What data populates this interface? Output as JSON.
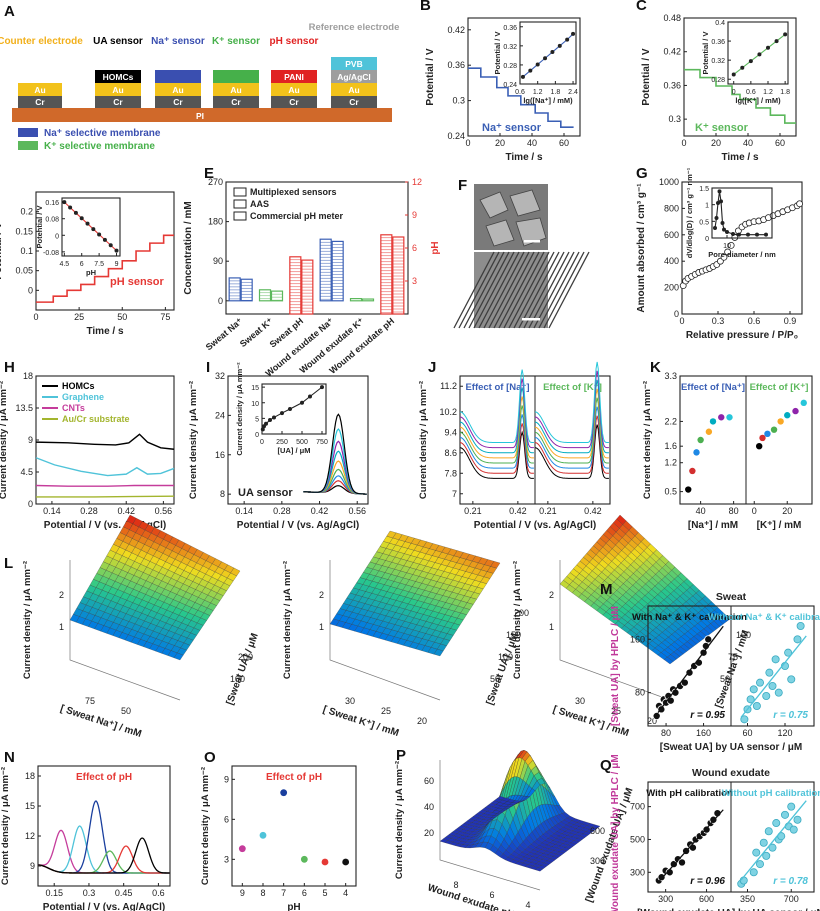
{
  "colors": {
    "na": "#3a5fb5",
    "k": "#5cb85c",
    "ph": "#e53935",
    "teal": "#4fc3d9",
    "magenta": "#c53c9b",
    "hplc_axis": "#c0399a",
    "rainbow": [
      "#000000",
      "#d32f2f",
      "#1e88e5",
      "#4caf50",
      "#f9a825",
      "#00acc1",
      "#8e24aa",
      "#26c6da"
    ]
  },
  "panelA": {
    "label": "A",
    "top_labels": {
      "counter": "Counter electrode",
      "ua": "UA sensor",
      "na": "Na⁺ sensor",
      "k": "K⁺ sensor",
      "ph": "pH sensor",
      "ref": "Reference electrode"
    },
    "layers": {
      "hom": "HOMCs",
      "pani": "PANI",
      "pvb": "PVB",
      "agcl": "Ag/AgCl",
      "au": "Au",
      "cr": "Cr",
      "pi": "PI"
    },
    "legend": [
      "Na⁺ selective membrane",
      "K⁺ selective membrane"
    ]
  },
  "chart_data": [
    {
      "panel": "B",
      "type": "line",
      "xlabel": "Time / s",
      "ylabel": "Potential / V",
      "xlim": [
        0,
        70
      ],
      "ylim": [
        0.24,
        0.44
      ],
      "xticks": [
        0,
        20,
        40,
        60
      ],
      "yticks": [
        0.24,
        0.3,
        0.36,
        0.42
      ],
      "annotation": "Na⁺ sensor",
      "steps": {
        "x": [
          0,
          8,
          18,
          25,
          33,
          42,
          50,
          58,
          66
        ],
        "y": [
          0.355,
          0.34,
          0.322,
          0.308,
          0.293,
          0.279,
          0.265,
          0.255,
          0.255
        ]
      },
      "inset": {
        "xlabel": "lg([Na⁺] / mM)",
        "ylabel": "Potential / V",
        "xlim": [
          0.6,
          2.5
        ],
        "ylim": [
          0.24,
          0.37
        ],
        "xticks": [
          0.6,
          1.2,
          1.8,
          2.4
        ],
        "yticks": [
          0.24,
          0.28,
          0.32,
          0.36
        ],
        "x": [
          0.7,
          0.95,
          1.2,
          1.45,
          1.7,
          1.95,
          2.2,
          2.4
        ],
        "y": [
          0.255,
          0.268,
          0.281,
          0.294,
          0.307,
          0.32,
          0.333,
          0.345
        ]
      }
    },
    {
      "panel": "C",
      "type": "line",
      "xlabel": "Time / s",
      "ylabel": "Potential / V",
      "xlim": [
        0,
        70
      ],
      "ylim": [
        0.27,
        0.48
      ],
      "xticks": [
        0,
        20,
        40,
        60
      ],
      "yticks": [
        0.3,
        0.36,
        0.42,
        0.48
      ],
      "annotation": "K⁺ sensor",
      "steps": {
        "x": [
          0,
          10,
          20,
          30,
          35,
          45,
          54,
          63,
          70
        ],
        "y": [
          0.388,
          0.374,
          0.359,
          0.344,
          0.335,
          0.32,
          0.307,
          0.293,
          0.293
        ]
      },
      "inset": {
        "xlabel": "lg([K⁺] / mM)",
        "ylabel": "Potential / V",
        "xlim": [
          -0.2,
          1.9
        ],
        "ylim": [
          0.27,
          0.4
        ],
        "xticks": [
          0.0,
          0.6,
          1.2,
          1.8
        ],
        "yticks": [
          0.28,
          0.32,
          0.36,
          0.4
        ],
        "x": [
          0.0,
          0.3,
          0.6,
          0.9,
          1.2,
          1.5,
          1.8
        ],
        "y": [
          0.29,
          0.304,
          0.318,
          0.332,
          0.346,
          0.36,
          0.374
        ]
      }
    },
    {
      "panel": "D",
      "type": "line",
      "xlabel": "Time / s",
      "ylabel": "Potential / V",
      "xlim": [
        0,
        80
      ],
      "ylim": [
        -0.05,
        0.25
      ],
      "xticks": [
        0,
        25,
        50,
        75
      ],
      "yticks": [
        0.0,
        0.05,
        0.1,
        0.15,
        0.2
      ],
      "annotation": "pH sensor",
      "steps": {
        "x": [
          0,
          10,
          18,
          26,
          34,
          42,
          50,
          58,
          66,
          74,
          80
        ],
        "y": [
          -0.03,
          -0.015,
          0.0,
          0.015,
          0.035,
          0.055,
          0.075,
          0.1,
          0.12,
          0.14,
          0.14
        ]
      },
      "inset": {
        "xlabel": "pH",
        "ylabel": "Potential / V",
        "xlim": [
          4.3,
          9.3
        ],
        "ylim": [
          -0.1,
          0.18
        ],
        "xticks": [
          4.5,
          6.0,
          7.5,
          9.0
        ],
        "yticks": [
          -0.08,
          0.0,
          0.08,
          0.16
        ],
        "x": [
          4.5,
          5.0,
          5.5,
          6.0,
          6.5,
          7.0,
          7.5,
          8.0,
          8.5,
          9.0
        ],
        "y": [
          0.16,
          0.134,
          0.108,
          0.082,
          0.056,
          0.03,
          0.004,
          -0.022,
          -0.048,
          -0.074
        ]
      }
    },
    {
      "panel": "E",
      "type": "bar",
      "ylabel": "Concentration / mM",
      "ylabel2": "pH",
      "ylim": [
        -30,
        270
      ],
      "yticks": [
        0,
        90,
        180,
        270
      ],
      "y2lim": [
        0,
        12
      ],
      "y2ticks": [
        3,
        6,
        9,
        12
      ],
      "categories": [
        "Sweat Na⁺",
        "Sweat K⁺",
        "Sweat pH",
        "Wound exudate Na⁺",
        "Wound exudate K⁺",
        "Wound exudate pH"
      ],
      "legend": [
        "Multiplexed sensors",
        "AAS",
        "Commercial pH meter"
      ],
      "series": [
        {
          "name": "Multiplexed sensors",
          "values": [
            52,
            25,
            5.2,
            140,
            5,
            7.2
          ]
        },
        {
          "name": "Commercial",
          "values": [
            49,
            22,
            4.9,
            135,
            4,
            7.0
          ]
        }
      ]
    },
    {
      "panel": "G",
      "type": "scatter",
      "xlabel": "Relative pressure / P/P₀",
      "ylabel": "Amount absorbed / cm³ g⁻¹",
      "xlim": [
        0,
        1.0
      ],
      "ylim": [
        0,
        1000
      ],
      "xticks": [
        0.0,
        0.3,
        0.6,
        0.9
      ],
      "yticks": [
        0,
        200,
        400,
        600,
        800,
        1000
      ],
      "x": [
        0.01,
        0.03,
        0.05,
        0.08,
        0.11,
        0.14,
        0.17,
        0.2,
        0.23,
        0.26,
        0.29,
        0.32,
        0.35,
        0.38,
        0.41,
        0.44,
        0.47,
        0.5,
        0.53,
        0.56,
        0.6,
        0.64,
        0.68,
        0.72,
        0.76,
        0.8,
        0.84,
        0.88,
        0.92,
        0.96,
        0.98
      ],
      "y": [
        215,
        250,
        270,
        285,
        300,
        315,
        325,
        335,
        345,
        360,
        375,
        400,
        430,
        470,
        520,
        580,
        630,
        660,
        680,
        690,
        700,
        705,
        715,
        730,
        745,
        760,
        775,
        790,
        805,
        820,
        835
      ],
      "inset": {
        "xlabel": "Pore diameter / nm",
        "ylabel": "dV/dlog(D) / cm³ g⁻¹ nm⁻¹",
        "xlim": [
          0,
          40
        ],
        "ylim": [
          0,
          1.5
        ],
        "xticks": [
          10
        ],
        "yticks": [
          0.0,
          0.5,
          1.0,
          1.5
        ],
        "x": [
          2,
          3,
          4,
          5,
          6,
          7,
          8,
          10,
          14,
          18,
          24,
          30,
          36
        ],
        "y": [
          0.3,
          0.6,
          1.05,
          1.4,
          1.1,
          0.45,
          0.25,
          0.18,
          0.12,
          0.1,
          0.1,
          0.1,
          0.1
        ]
      }
    },
    {
      "panel": "H",
      "type": "line",
      "xlabel": "Potential / V (vs. Ag/AgCl)",
      "ylabel": "Current density / μA mm⁻²",
      "xlim": [
        0.08,
        0.6
      ],
      "ylim": [
        0,
        18
      ],
      "xticks": [
        0.14,
        0.28,
        0.42,
        0.56
      ],
      "yticks": [
        0,
        4.5,
        9,
        13.5,
        18
      ],
      "legend": [
        "HOMCs",
        "Graphene",
        "CNTs",
        "Au/Cr substrate"
      ],
      "series": [
        {
          "name": "HOMCs",
          "x": [
            0.08,
            0.2,
            0.3,
            0.38,
            0.43,
            0.47,
            0.5,
            0.55,
            0.6
          ],
          "y": [
            8.7,
            8.6,
            8.4,
            8.3,
            8.6,
            9.8,
            8.7,
            7.9,
            7.7
          ]
        },
        {
          "name": "Graphene",
          "x": [
            0.08,
            0.15,
            0.25,
            0.35,
            0.42,
            0.46,
            0.5,
            0.55,
            0.6
          ],
          "y": [
            6.5,
            5.5,
            4.6,
            4.0,
            4.2,
            5.1,
            4.2,
            4.3,
            5.0
          ]
        },
        {
          "name": "CNTs",
          "x": [
            0.08,
            0.2,
            0.35,
            0.45,
            0.6
          ],
          "y": [
            2.6,
            2.5,
            2.5,
            2.6,
            2.6
          ]
        },
        {
          "name": "Au/Cr substrate",
          "x": [
            0.08,
            0.3,
            0.6
          ],
          "y": [
            1.0,
            1.0,
            1.1
          ]
        }
      ]
    },
    {
      "panel": "I",
      "type": "line",
      "xlabel": "Potential / V (vs. Ag/AgCl)",
      "ylabel": "Current density / μA mm⁻²",
      "xlim": [
        0.08,
        0.6
      ],
      "ylim": [
        6,
        32
      ],
      "xticks": [
        0.14,
        0.28,
        0.42,
        0.56
      ],
      "yticks": [
        8,
        16,
        24,
        32
      ],
      "annotation": "UA sensor",
      "peak_heights": [
        9.5,
        10.5,
        11.5,
        12.8,
        14.5,
        16.5,
        18.5,
        21,
        24
      ],
      "inset": {
        "xlabel": "[UA] / μM",
        "ylabel": "Current density / μA mm⁻²",
        "xlim": [
          0,
          800
        ],
        "ylim": [
          0,
          16
        ],
        "xticks": [
          0,
          250,
          500,
          750
        ],
        "yticks": [
          0,
          5,
          10,
          15
        ],
        "x": [
          10,
          25,
          50,
          100,
          150,
          250,
          350,
          500,
          600,
          750
        ],
        "y": [
          1.5,
          2.5,
          3.3,
          4.5,
          5.3,
          6.7,
          8.0,
          10.0,
          12.0,
          15.0
        ]
      }
    },
    {
      "panel": "J",
      "type": "line",
      "xlabel": "Potential / V (vs. Ag/AgCl)",
      "ylabel": "Current density / μA mm⁻²",
      "xlim": [
        0.15,
        0.5
      ],
      "ylim": [
        6.6,
        11.6
      ],
      "xticks": [
        0.21,
        0.42
      ],
      "yticks": [
        7.0,
        7.8,
        8.6,
        9.4,
        10.2,
        11.2
      ],
      "titles": [
        "Effect of [Na⁺]",
        "Effect of [K⁺]"
      ]
    },
    {
      "panel": "K",
      "type": "scatter",
      "ylabel": "Current density / μA mm⁻²",
      "ylim": [
        0.2,
        3.3
      ],
      "yticks": [
        0.5,
        1.2,
        1.6,
        2.2,
        3.3
      ],
      "titles": [
        "Effect of [Na⁺]",
        "Effect of [K⁺]"
      ],
      "left": {
        "xlabel": "[Na⁺] / mM",
        "xlim": [
          15,
          95
        ],
        "xticks": [
          40,
          80
        ],
        "x": [
          25,
          30,
          35,
          40,
          50,
          55,
          65,
          75
        ],
        "y": [
          0.55,
          1.0,
          1.45,
          1.75,
          1.95,
          2.2,
          2.3,
          2.3
        ]
      },
      "right": {
        "xlabel": "[K⁺] / mM",
        "xlim": [
          -5,
          35
        ],
        "xticks": [
          0,
          20
        ],
        "x": [
          3,
          5,
          8,
          12,
          16,
          20,
          25,
          30
        ],
        "y": [
          1.6,
          1.8,
          1.9,
          2.0,
          2.2,
          2.35,
          2.45,
          2.65
        ]
      }
    },
    {
      "panel": "L",
      "type": "surface",
      "plots": [
        {
          "xlabel": "[ Sweat Na⁺] / mM",
          "ylabel": "[Sweat UA] / μM",
          "zlabel": "Current density / μA mm⁻²",
          "xticks": [
            75,
            50
          ],
          "yticks": [
            100,
            200
          ],
          "zticks": [
            1,
            2
          ]
        },
        {
          "xlabel": "[ Sweat K⁺] / mM",
          "ylabel": "[Sweat UA] / μM",
          "zlabel": "Current density / μA mm⁻²",
          "xticks": [
            30,
            25,
            20
          ],
          "yticks": [
            50,
            100,
            150,
            200
          ],
          "zticks": [
            1,
            2
          ]
        },
        {
          "xlabel": "[ Sweat K⁺] / mM",
          "ylabel": "[Sweat Na⁺] / mM",
          "zlabel": "Current density / μA mm⁻²",
          "xticks": [
            30,
            25,
            20
          ],
          "yticks": [
            50,
            75,
            100
          ],
          "zticks": [
            1,
            2
          ]
        }
      ]
    },
    {
      "panel": "M",
      "type": "scatter",
      "title": "Sweat",
      "xlabel": "[Sweat UA] by UA sensor / μM",
      "ylabel": "[Sweat UA] by HPLC / μM",
      "ylim": [
        30,
        210
      ],
      "yticks": [
        80,
        160
      ],
      "left": {
        "caption": "With Na⁺ & K⁺ calibration",
        "r": "r = 0.95",
        "xlim": [
          50,
          210
        ],
        "xticks": [
          80,
          160
        ],
        "x": [
          60,
          65,
          70,
          75,
          80,
          85,
          90,
          95,
          100,
          110,
          120,
          130,
          140,
          150,
          160,
          165,
          170
        ],
        "y": [
          45,
          60,
          55,
          70,
          65,
          75,
          68,
          85,
          80,
          90,
          95,
          110,
          120,
          125,
          140,
          150,
          160
        ]
      },
      "right": {
        "caption": "Without Na⁺ & K⁺ calibration",
        "r": "r = 0.75",
        "xlim": [
          40,
          160
        ],
        "xticks": [
          60,
          120
        ],
        "x": [
          55,
          60,
          65,
          70,
          75,
          80,
          90,
          95,
          100,
          105,
          110,
          120,
          125,
          130,
          140,
          145
        ],
        "y": [
          40,
          55,
          70,
          85,
          60,
          95,
          75,
          110,
          90,
          130,
          80,
          120,
          140,
          100,
          160,
          180
        ]
      }
    },
    {
      "panel": "N",
      "type": "line",
      "title": "Effect of pH",
      "xlabel": "Potential / V (vs. Ag/AgCl)",
      "ylabel": "Current density / μA mm⁻²",
      "xlim": [
        0.08,
        0.65
      ],
      "ylim": [
        7,
        19
      ],
      "xticks": [
        0.15,
        0.3,
        0.45,
        0.6
      ],
      "yticks": [
        9,
        12,
        15,
        18
      ],
      "peaks": [
        {
          "x": 0.18,
          "y": 12.5
        },
        {
          "x": 0.26,
          "y": 13.0
        },
        {
          "x": 0.33,
          "y": 15.5
        },
        {
          "x": 0.39,
          "y": 10.5
        },
        {
          "x": 0.46,
          "y": 11.0
        },
        {
          "x": 0.53,
          "y": 11.8
        }
      ]
    },
    {
      "panel": "O",
      "type": "scatter",
      "title": "Effect of pH",
      "xlabel": "pH",
      "ylabel": "Current density / μA mm⁻²",
      "xlim": [
        9.5,
        3.5
      ],
      "ylim": [
        1,
        10
      ],
      "xticks": [
        9,
        8,
        7,
        6,
        5,
        4
      ],
      "yticks": [
        3,
        6,
        9
      ],
      "x": [
        9,
        8,
        7,
        6,
        5,
        4
      ],
      "y": [
        3.8,
        4.8,
        8.0,
        3.0,
        2.8,
        2.8
      ]
    },
    {
      "panel": "P",
      "type": "surface",
      "xlabel": "Wound exudate pH",
      "ylabel": "[Wound exudate UA] / μM",
      "zlabel": "Current density / μA mm⁻²",
      "xticks": [
        8,
        6,
        4
      ],
      "yticks": [
        300,
        600
      ],
      "zticks": [
        20,
        40,
        60
      ]
    },
    {
      "panel": "Q",
      "type": "scatter",
      "title": "Wound exudate",
      "xlabel": "[Wound exudate UA] by UA sensor / μM",
      "ylabel": "[Wound exudate UA] by HPLC / μM",
      "ylim": [
        180,
        850
      ],
      "yticks": [
        300,
        500,
        700
      ],
      "left": {
        "caption": "With pH calibration",
        "r": "r = 0.96",
        "xlim": [
          200,
          750
        ],
        "xticks": [
          300,
          600
        ],
        "x": [
          250,
          270,
          300,
          330,
          360,
          390,
          420,
          450,
          480,
          500,
          520,
          550,
          580,
          600,
          630,
          650,
          680
        ],
        "y": [
          250,
          270,
          310,
          300,
          350,
          380,
          360,
          430,
          470,
          450,
          500,
          520,
          540,
          560,
          600,
          620,
          660
        ]
      },
      "right": {
        "caption": "Without pH calibration",
        "r": "r = 0.78",
        "xlim": [
          250,
          850
        ],
        "xticks": [
          350,
          700
        ],
        "x": [
          300,
          320,
          400,
          420,
          450,
          480,
          500,
          520,
          550,
          580,
          600,
          620,
          650,
          680,
          700,
          720,
          750
        ],
        "y": [
          230,
          250,
          300,
          420,
          350,
          480,
          400,
          550,
          450,
          600,
          500,
          520,
          650,
          580,
          700,
          560,
          620
        ]
      }
    }
  ],
  "panelF": {
    "label": "F"
  }
}
